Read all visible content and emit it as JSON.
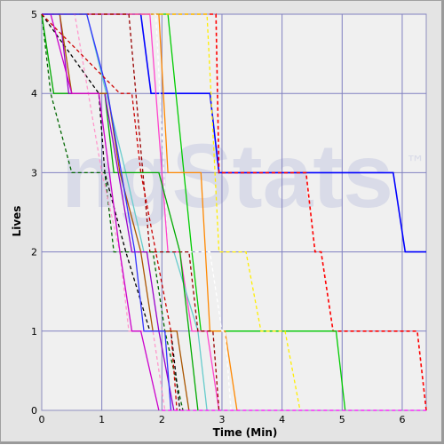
{
  "watermark": "ngStats",
  "watermark_tm": "™",
  "chart_data": {
    "type": "line",
    "title": "",
    "xlabel": "Time (Min)",
    "ylabel": "Lives",
    "xlim": [
      0,
      6.4
    ],
    "ylim": [
      0,
      5
    ],
    "xticks": [
      "0",
      "1",
      "2",
      "3",
      "4",
      "5",
      "6"
    ],
    "yticks": [
      "0",
      "1",
      "2",
      "3",
      "4",
      "5"
    ],
    "grid": true,
    "legend": "none",
    "series": [
      {
        "color": "#0000ff",
        "dash": false,
        "points": [
          [
            0,
            5
          ],
          [
            1.65,
            5
          ],
          [
            1.82,
            4
          ],
          [
            2.8,
            4
          ],
          [
            2.95,
            3
          ],
          [
            5.85,
            3
          ],
          [
            6.05,
            2
          ],
          [
            6.4,
            2
          ]
        ]
      },
      {
        "color": "#ff0000",
        "dash": true,
        "points": [
          [
            0,
            5
          ],
          [
            2.9,
            5
          ],
          [
            2.95,
            3
          ],
          [
            4.4,
            3
          ],
          [
            4.55,
            2
          ],
          [
            4.65,
            2
          ],
          [
            4.85,
            1
          ],
          [
            6.25,
            1
          ],
          [
            6.4,
            0
          ]
        ]
      },
      {
        "color": "#00cc00",
        "dash": false,
        "points": [
          [
            0,
            5
          ],
          [
            2.1,
            5
          ],
          [
            2.5,
            2
          ],
          [
            2.65,
            1
          ],
          [
            4.9,
            1
          ],
          [
            5.05,
            0
          ]
        ]
      },
      {
        "color": "#ffee00",
        "dash": true,
        "points": [
          [
            0,
            5
          ],
          [
            2.75,
            5
          ],
          [
            2.95,
            2
          ],
          [
            3.4,
            2
          ],
          [
            3.65,
            1
          ],
          [
            4.05,
            1
          ],
          [
            4.3,
            0
          ]
        ]
      },
      {
        "color": "#ff8800",
        "dash": false,
        "points": [
          [
            0,
            5
          ],
          [
            1.95,
            5
          ],
          [
            2.1,
            3
          ],
          [
            2.65,
            3
          ],
          [
            2.8,
            1
          ],
          [
            3.05,
            1
          ],
          [
            3.25,
            0
          ]
        ]
      },
      {
        "color": "#ffffff",
        "dash": true,
        "points": [
          [
            0,
            5
          ],
          [
            1.9,
            5
          ],
          [
            2.1,
            2
          ],
          [
            2.8,
            2
          ],
          [
            3.0,
            1
          ],
          [
            3.05,
            1
          ],
          [
            3.15,
            0
          ]
        ]
      },
      {
        "color": "#ff44cc",
        "dash": false,
        "points": [
          [
            0,
            5
          ],
          [
            1.8,
            5
          ],
          [
            2.1,
            2
          ],
          [
            2.3,
            2
          ],
          [
            2.5,
            1
          ],
          [
            2.75,
            1
          ],
          [
            2.95,
            0
          ]
        ]
      },
      {
        "color": "#66cccc",
        "dash": false,
        "points": [
          [
            0,
            5
          ],
          [
            0.75,
            5
          ],
          [
            1.4,
            3
          ],
          [
            1.7,
            2
          ],
          [
            2.2,
            2
          ],
          [
            2.6,
            1
          ],
          [
            2.75,
            0
          ]
        ]
      },
      {
        "color": "#990000",
        "dash": true,
        "points": [
          [
            0,
            5
          ],
          [
            1.45,
            5
          ],
          [
            1.8,
            2
          ],
          [
            2.45,
            2
          ],
          [
            2.6,
            1
          ],
          [
            2.85,
            1
          ],
          [
            2.95,
            0
          ]
        ]
      },
      {
        "color": "#006600",
        "dash": true,
        "points": [
          [
            0,
            5
          ],
          [
            0.15,
            4
          ],
          [
            0.5,
            3
          ],
          [
            1.05,
            3
          ],
          [
            1.2,
            2
          ],
          [
            1.85,
            2
          ],
          [
            2.05,
            1
          ],
          [
            2.35,
            0
          ]
        ]
      },
      {
        "color": "#00aa00",
        "dash": false,
        "points": [
          [
            0,
            5
          ],
          [
            0.2,
            4
          ],
          [
            1.05,
            4
          ],
          [
            1.2,
            3
          ],
          [
            1.95,
            3
          ],
          [
            2.3,
            2
          ],
          [
            2.45,
            1
          ],
          [
            2.6,
            0
          ]
        ]
      },
      {
        "color": "#9900cc",
        "dash": false,
        "points": [
          [
            0,
            5
          ],
          [
            0.3,
            5
          ],
          [
            0.45,
            4
          ],
          [
            1.05,
            4
          ],
          [
            1.5,
            2
          ],
          [
            1.75,
            2
          ],
          [
            1.95,
            1
          ],
          [
            2.2,
            0
          ]
        ]
      },
      {
        "color": "#000000",
        "dash": true,
        "points": [
          [
            0,
            5
          ],
          [
            0.95,
            4
          ],
          [
            1.05,
            3
          ],
          [
            1.4,
            2
          ],
          [
            1.8,
            1
          ],
          [
            2.15,
            1
          ],
          [
            2.3,
            0
          ]
        ]
      },
      {
        "color": "#aa5500",
        "dash": false,
        "points": [
          [
            0,
            5
          ],
          [
            0.3,
            5
          ],
          [
            0.5,
            4
          ],
          [
            1.1,
            4
          ],
          [
            1.3,
            3
          ],
          [
            1.65,
            2
          ],
          [
            1.85,
            1
          ],
          [
            2.25,
            1
          ],
          [
            2.45,
            0
          ]
        ]
      },
      {
        "color": "#ff99cc",
        "dash": true,
        "points": [
          [
            0,
            5
          ],
          [
            0.55,
            5
          ],
          [
            1.0,
            3
          ],
          [
            1.3,
            2
          ],
          [
            1.45,
            1
          ],
          [
            1.85,
            1
          ],
          [
            2.05,
            0
          ]
        ]
      },
      {
        "color": "#cc00cc",
        "dash": false,
        "points": [
          [
            0,
            5
          ],
          [
            0.15,
            5
          ],
          [
            0.5,
            4
          ],
          [
            0.95,
            4
          ],
          [
            1.3,
            2
          ],
          [
            1.5,
            1
          ],
          [
            1.65,
            1
          ],
          [
            1.95,
            0
          ]
        ]
      },
      {
        "color": "#3333ff",
        "dash": false,
        "points": [
          [
            0,
            5
          ],
          [
            0.75,
            5
          ],
          [
            1.1,
            4
          ],
          [
            1.55,
            2
          ],
          [
            1.7,
            1
          ],
          [
            2.05,
            1
          ],
          [
            2.15,
            0
          ]
        ]
      },
      {
        "color": "#cc0000",
        "dash": true,
        "points": [
          [
            0,
            5
          ],
          [
            1.3,
            4
          ],
          [
            1.5,
            4
          ],
          [
            1.65,
            3
          ],
          [
            1.9,
            2
          ],
          [
            2.15,
            1
          ],
          [
            2.25,
            0
          ]
        ]
      },
      {
        "color": "#ff00ff",
        "dash": true,
        "points": [
          [
            2.0,
            0
          ],
          [
            6.4,
            0
          ]
        ]
      }
    ]
  }
}
